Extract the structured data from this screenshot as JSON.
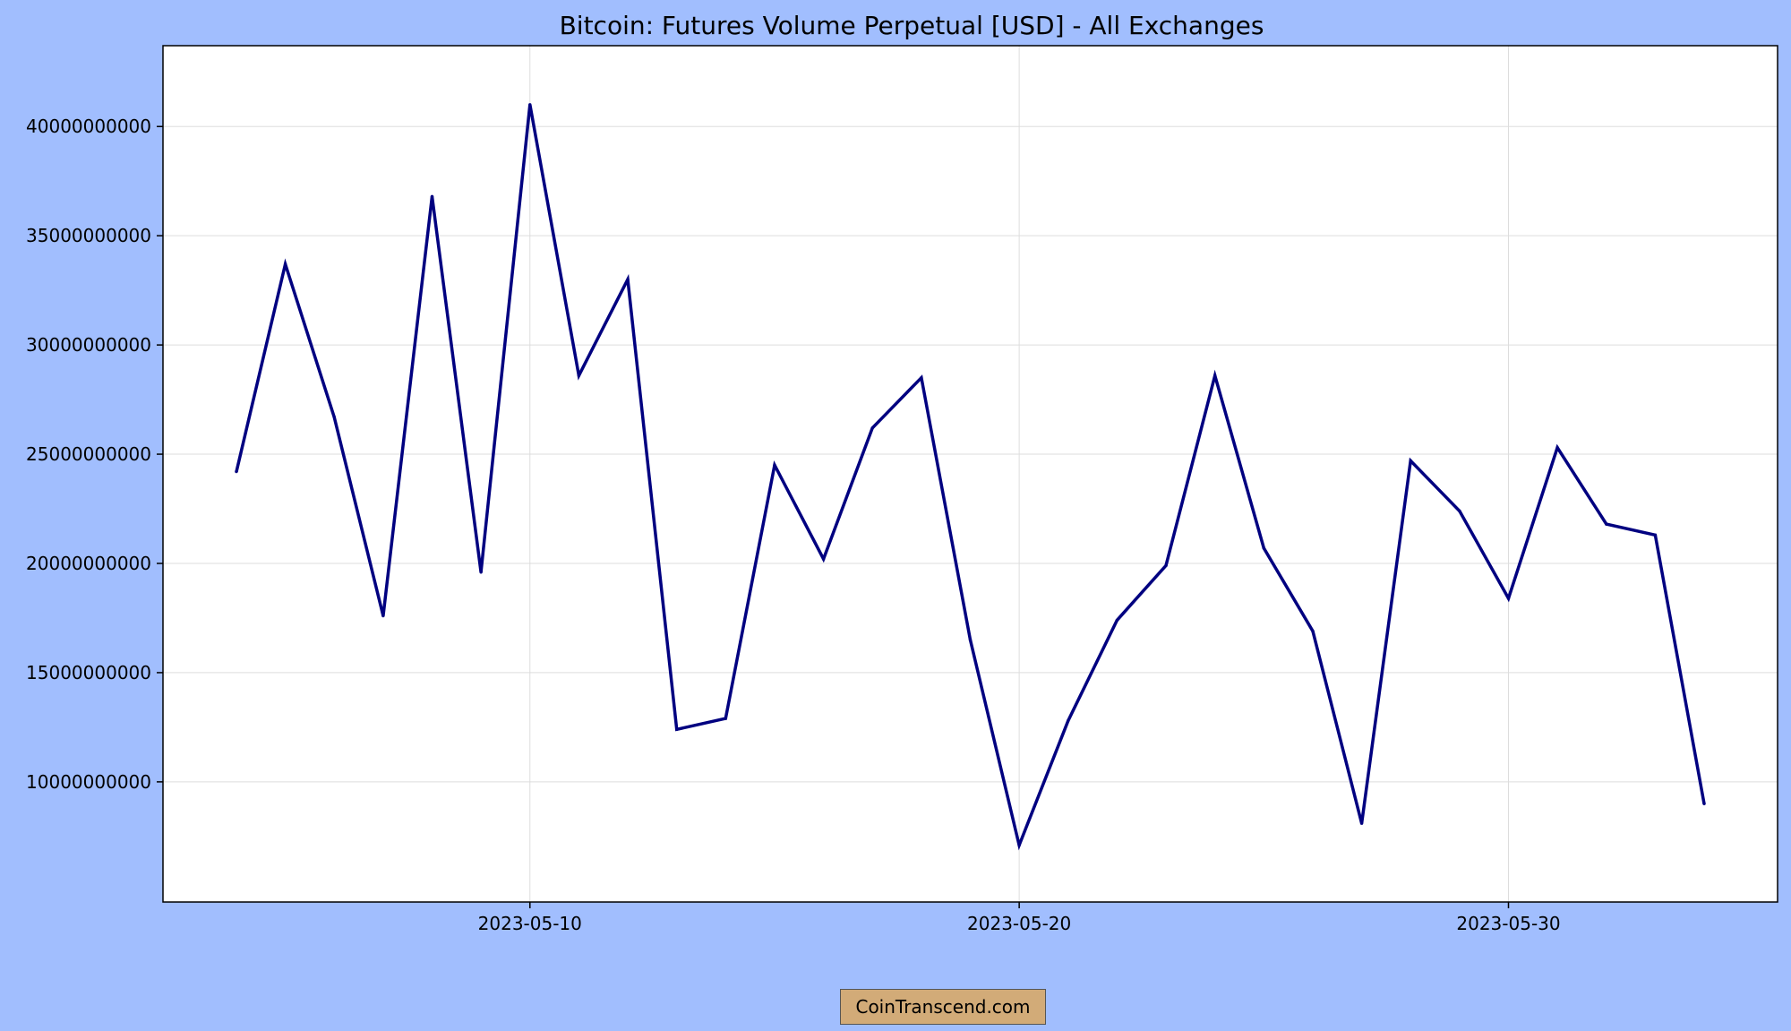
{
  "chart_data": {
    "type": "line",
    "title": "Bitcoin: Futures Volume Perpetual [USD] - All Exchanges",
    "xlabel": "",
    "ylabel": "",
    "x_start": "2023-05-04",
    "x_end": "2023-06-03",
    "x": [
      "2023-05-04",
      "2023-05-05",
      "2023-05-06",
      "2023-05-07",
      "2023-05-08",
      "2023-05-09",
      "2023-05-10",
      "2023-05-11",
      "2023-05-12",
      "2023-05-13",
      "2023-05-14",
      "2023-05-15",
      "2023-05-16",
      "2023-05-17",
      "2023-05-18",
      "2023-05-19",
      "2023-05-20",
      "2023-05-21",
      "2023-05-22",
      "2023-05-23",
      "2023-05-24",
      "2023-05-25",
      "2023-05-26",
      "2023-05-27",
      "2023-05-28",
      "2023-05-29",
      "2023-05-30",
      "2023-05-31",
      "2023-06-01",
      "2023-06-02",
      "2023-06-03"
    ],
    "series": [
      {
        "values": [
          24200000000,
          33700000000,
          26700000000,
          17600000000,
          36800000000,
          19600000000,
          41000000000,
          28600000000,
          33000000000,
          12400000000,
          12900000000,
          24500000000,
          20200000000,
          26200000000,
          28500000000,
          16500000000,
          7100000000,
          12800000000,
          17400000000,
          19900000000,
          28600000000,
          20700000000,
          16900000000,
          8100000000,
          24700000000,
          22400000000,
          18400000000,
          25300000000,
          21800000000,
          21300000000,
          9000000000
        ],
        "color": "#000080"
      }
    ],
    "x_ticks": [
      "2023-05-10",
      "2023-05-20",
      "2023-05-30"
    ],
    "y_ticks": [
      10000000000,
      15000000000,
      20000000000,
      25000000000,
      30000000000,
      35000000000,
      40000000000
    ],
    "y_tick_labels": [
      "10000000000",
      "15000000000",
      "20000000000",
      "25000000000",
      "30000000000",
      "35000000000",
      "40000000000"
    ],
    "ylim": [
      4500000000,
      43700000000
    ],
    "grid": true,
    "legend": "none"
  },
  "colors": {
    "background": "#a1befe",
    "plot_area": "#ffffff",
    "line": "#000080",
    "grid": "#dddddd",
    "badge": "#d2ab78"
  },
  "footer": {
    "source": "CoinTranscend.com"
  }
}
